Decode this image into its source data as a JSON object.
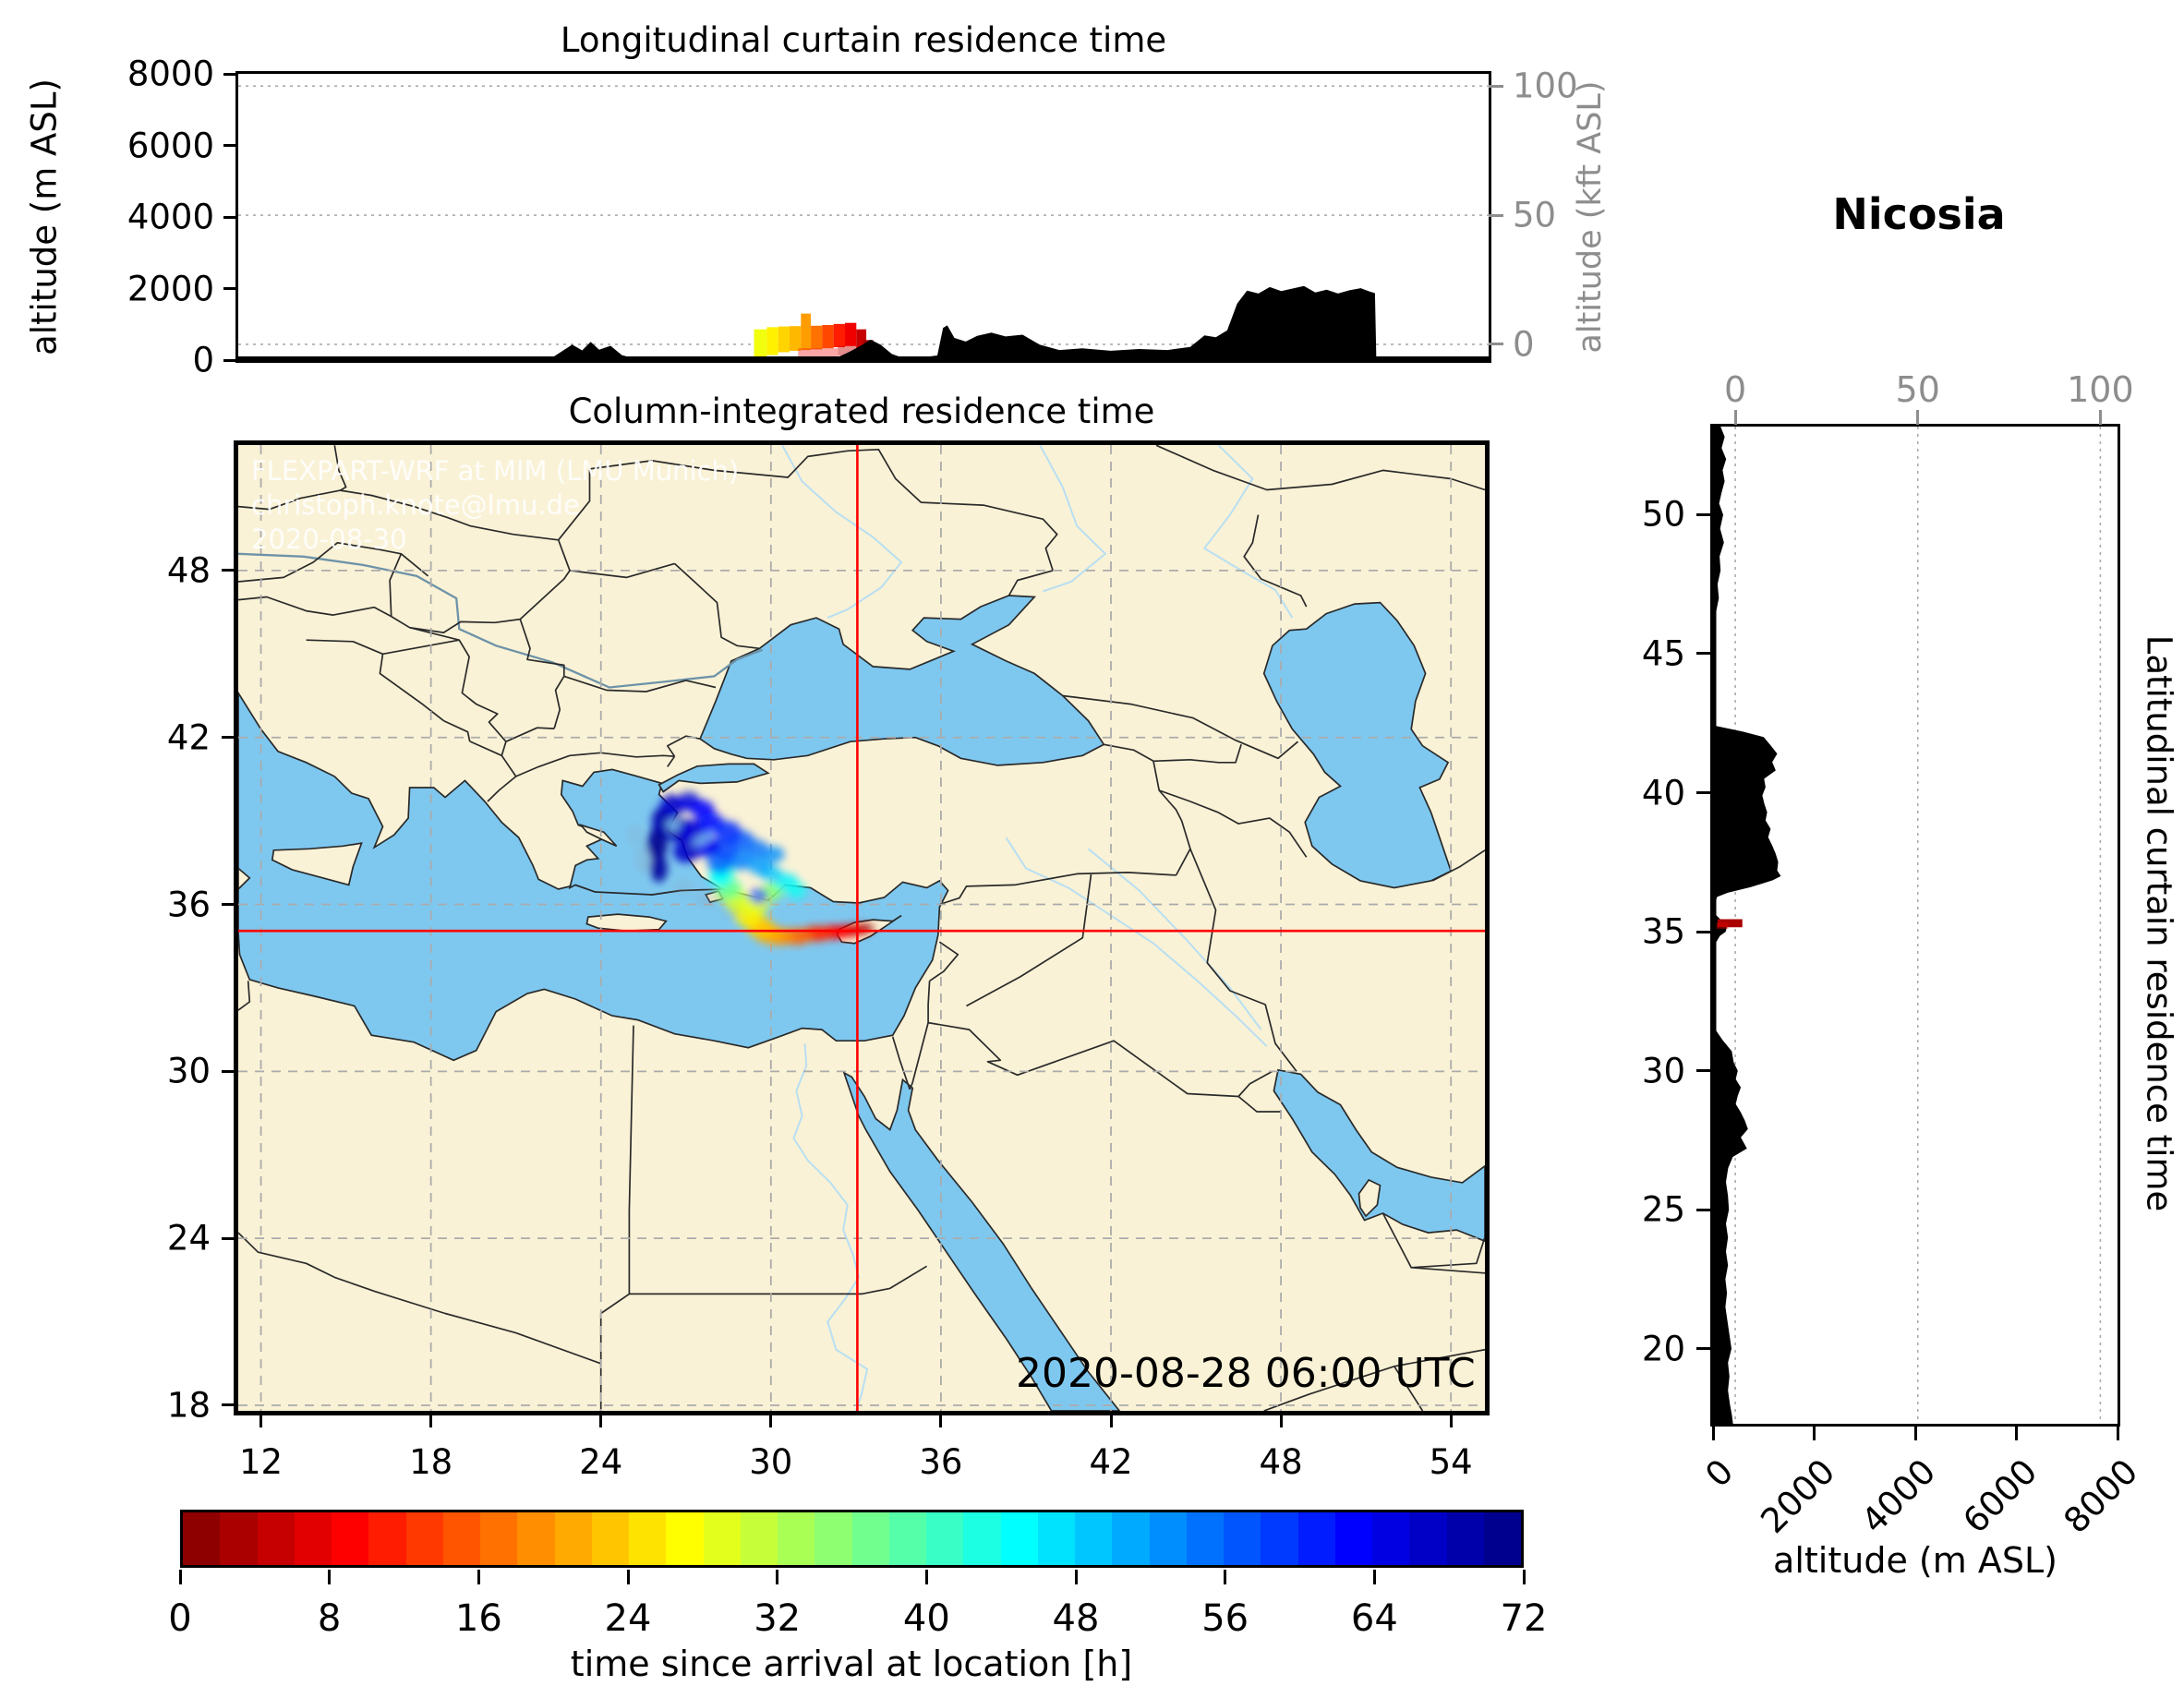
{
  "figure": {
    "title_station": "Nicosia",
    "watermark_lines": [
      "FLEXPART-WRF at MIM (LMU Munich)",
      "christoph.knote@lmu.de",
      "2020-08-30"
    ],
    "colors": {
      "land": "#FAF2D6",
      "sea": "#7EC8F0",
      "coast": "#2a2a2a",
      "border": "#2a2a2a",
      "river": "#b8dff2",
      "big_river": "#6d93a8",
      "grid": "#ababab",
      "crosshair": "#ff0000",
      "terrain": "#000000",
      "axis_gray": "#8d8d8d"
    }
  },
  "chart_data": [
    {
      "id": "longitudinal_curtain",
      "type": "area",
      "title": "Longitudinal curtain residence time",
      "ylabel": "altitude (m ASL)",
      "ylabel_right": "altitude (kft ASL)",
      "yticks": [
        8000,
        6000,
        4000,
        2000,
        0
      ],
      "yticks_right": [
        100,
        50,
        0
      ],
      "xlim": [
        11.2,
        55.2
      ],
      "ylim": [
        0,
        8000
      ],
      "right_gridlines_m": [
        7660,
        4050,
        440
      ],
      "terrain_lon_alt": [
        [
          11.2,
          40
        ],
        [
          13,
          28
        ],
        [
          15,
          25
        ],
        [
          17,
          30
        ],
        [
          19,
          28
        ],
        [
          21,
          32
        ],
        [
          22.2,
          45
        ],
        [
          22.6,
          250
        ],
        [
          22.95,
          430
        ],
        [
          23.3,
          270
        ],
        [
          23.6,
          510
        ],
        [
          23.9,
          290
        ],
        [
          24.3,
          400
        ],
        [
          24.7,
          140
        ],
        [
          25.1,
          55
        ],
        [
          26,
          35
        ],
        [
          27.5,
          30
        ],
        [
          29,
          40
        ],
        [
          30.5,
          45
        ],
        [
          31.8,
          60
        ],
        [
          32.3,
          80
        ],
        [
          32.7,
          230
        ],
        [
          33.1,
          400
        ],
        [
          33.45,
          570
        ],
        [
          33.8,
          430
        ],
        [
          34.2,
          170
        ],
        [
          34.6,
          60
        ],
        [
          35.2,
          70
        ],
        [
          35.8,
          130
        ],
        [
          36.0,
          900
        ],
        [
          36.15,
          970
        ],
        [
          36.4,
          620
        ],
        [
          36.8,
          520
        ],
        [
          37.2,
          680
        ],
        [
          37.7,
          770
        ],
        [
          38.2,
          660
        ],
        [
          38.8,
          710
        ],
        [
          39.4,
          430
        ],
        [
          40.1,
          280
        ],
        [
          40.9,
          330
        ],
        [
          41.9,
          260
        ],
        [
          42.9,
          310
        ],
        [
          43.9,
          280
        ],
        [
          44.7,
          370
        ],
        [
          45.2,
          690
        ],
        [
          45.6,
          640
        ],
        [
          46.0,
          830
        ],
        [
          46.35,
          1580
        ],
        [
          46.7,
          1940
        ],
        [
          47.1,
          1860
        ],
        [
          47.5,
          2040
        ],
        [
          47.9,
          1930
        ],
        [
          48.3,
          2000
        ],
        [
          48.7,
          2070
        ],
        [
          49.1,
          1890
        ],
        [
          49.5,
          1970
        ],
        [
          49.9,
          1860
        ],
        [
          50.3,
          1950
        ],
        [
          50.7,
          2010
        ],
        [
          51.0,
          1920
        ],
        [
          51.2,
          1870
        ],
        [
          51.25,
          0
        ]
      ],
      "plume_columns": [
        [
          29.35,
          29.8,
          40,
          860,
          28,
          1
        ],
        [
          29.8,
          30.2,
          140,
          920,
          26,
          1
        ],
        [
          30.2,
          30.6,
          220,
          940,
          24,
          1
        ],
        [
          30.6,
          31.0,
          260,
          950,
          22,
          1
        ],
        [
          31.0,
          31.35,
          280,
          1300,
          20,
          1
        ],
        [
          31.35,
          31.75,
          300,
          960,
          17,
          1
        ],
        [
          31.75,
          32.15,
          330,
          980,
          14,
          1
        ],
        [
          32.15,
          32.55,
          360,
          1010,
          11,
          1
        ],
        [
          32.55,
          32.95,
          390,
          1040,
          8,
          1
        ],
        [
          32.95,
          33.3,
          300,
          860,
          5,
          1
        ],
        [
          33.2,
          33.55,
          180,
          560,
          2,
          1
        ],
        [
          30.9,
          32.3,
          60,
          330,
          8,
          0.35
        ],
        [
          32.3,
          33.05,
          120,
          390,
          5,
          0.45
        ]
      ]
    },
    {
      "id": "column_integrated_map",
      "type": "map",
      "title": "Column-integrated residence time",
      "xticks": [
        12,
        18,
        24,
        30,
        36,
        42,
        48,
        54
      ],
      "yticks": [
        48,
        42,
        36,
        30,
        24,
        18
      ],
      "xlim": [
        11.2,
        55.2
      ],
      "ylim": [
        17.8,
        52.51
      ],
      "crosshair_lonlat": [
        33.05,
        35.05
      ],
      "timestamp": "2020-08-28 06:00 UTC",
      "plume_blobs": [
        [
          33.3,
          35.15,
          0.35,
          0.14,
          1,
          1
        ],
        [
          33.05,
          35.1,
          0.45,
          0.18,
          3,
          1
        ],
        [
          32.7,
          35.05,
          0.5,
          0.22,
          6,
          0.97
        ],
        [
          32.2,
          35.0,
          0.55,
          0.25,
          9,
          0.95
        ],
        [
          31.6,
          34.95,
          0.55,
          0.28,
          12,
          0.95
        ],
        [
          30.9,
          34.85,
          0.55,
          0.3,
          16,
          0.93
        ],
        [
          30.3,
          34.85,
          0.5,
          0.32,
          19,
          0.92
        ],
        [
          29.9,
          34.95,
          0.5,
          0.35,
          21,
          0.92
        ],
        [
          29.6,
          35.2,
          0.5,
          0.38,
          23,
          0.9
        ],
        [
          29.2,
          35.6,
          0.5,
          0.4,
          26,
          0.9
        ],
        [
          28.9,
          36.05,
          0.5,
          0.4,
          29,
          0.9
        ],
        [
          29.5,
          36.0,
          0.45,
          0.35,
          29,
          0.85
        ],
        [
          28.55,
          36.4,
          0.5,
          0.36,
          32,
          0.88
        ],
        [
          29.9,
          36.4,
          0.4,
          0.32,
          33,
          0.85
        ],
        [
          30.2,
          36.55,
          0.38,
          0.3,
          36,
          0.85
        ],
        [
          28.5,
          36.6,
          0.45,
          0.38,
          38,
          0.85
        ],
        [
          28.3,
          37.15,
          0.42,
          0.35,
          42,
          0.85
        ],
        [
          30.55,
          36.8,
          0.42,
          0.32,
          46,
          0.82
        ],
        [
          30.9,
          36.5,
          0.35,
          0.3,
          44,
          0.8
        ],
        [
          30.0,
          37.1,
          0.4,
          0.3,
          49,
          0.8
        ],
        [
          28.2,
          36.95,
          0.4,
          0.33,
          45,
          0.82
        ],
        [
          28.9,
          37.6,
          0.45,
          0.36,
          54,
          0.85
        ],
        [
          28.2,
          37.5,
          0.45,
          0.38,
          56,
          0.85
        ],
        [
          29.6,
          37.4,
          0.42,
          0.33,
          52,
          0.82
        ],
        [
          30.1,
          37.8,
          0.38,
          0.3,
          53,
          0.8
        ],
        [
          28.4,
          38.0,
          0.45,
          0.38,
          58,
          0.85
        ],
        [
          29.0,
          38.3,
          0.42,
          0.35,
          57,
          0.82
        ],
        [
          29.5,
          38.0,
          0.4,
          0.33,
          55,
          0.8
        ],
        [
          27.7,
          38.1,
          0.5,
          0.4,
          64,
          0.9
        ],
        [
          27.0,
          37.9,
          0.45,
          0.4,
          67,
          0.9
        ],
        [
          26.05,
          37.3,
          0.3,
          0.5,
          70,
          0.9
        ],
        [
          26.0,
          38.2,
          0.35,
          0.6,
          71,
          0.92
        ],
        [
          26.15,
          39.0,
          0.35,
          0.5,
          69,
          0.92
        ],
        [
          26.5,
          39.55,
          0.4,
          0.4,
          67,
          0.9
        ],
        [
          27.1,
          39.7,
          0.4,
          0.35,
          65,
          0.9
        ],
        [
          27.6,
          39.4,
          0.4,
          0.35,
          63,
          0.88
        ],
        [
          26.7,
          38.7,
          0.45,
          0.45,
          68,
          0.92
        ],
        [
          27.3,
          38.6,
          0.5,
          0.45,
          66,
          0.9
        ],
        [
          27.9,
          38.9,
          0.45,
          0.4,
          62,
          0.88
        ],
        [
          28.5,
          38.6,
          0.45,
          0.4,
          60,
          0.85
        ],
        [
          29.55,
          36.3,
          0.33,
          0.26,
          64,
          0.85
        ]
      ],
      "plume_gaps": [
        [
          29.5,
          36.28,
          0.28,
          0.09,
          -20
        ],
        [
          27.6,
          38.35,
          0.42,
          0.12,
          -30
        ],
        [
          26.55,
          38.85,
          0.24,
          0.18,
          0
        ]
      ],
      "plume_fringe": [
        [
          25.5,
          37.6,
          0.3,
          0.5,
          0.22
        ],
        [
          25.2,
          38.5,
          0.28,
          0.4,
          0.18
        ],
        [
          27.8,
          36.2,
          0.5,
          0.3,
          0.22
        ],
        [
          26.9,
          36.6,
          0.4,
          0.3,
          0.18
        ],
        [
          27.1,
          40.0,
          0.35,
          0.2,
          0.2
        ],
        [
          28.6,
          35.7,
          0.4,
          0.25,
          0.18
        ]
      ]
    },
    {
      "id": "latitudinal_curtain",
      "type": "area",
      "ylabel_right": "Latitudinal curtain residence time",
      "xlabel": "altitude (m ASL)",
      "xticks": [
        0,
        2000,
        4000,
        6000,
        8000
      ],
      "xticks_top": [
        0,
        50,
        100
      ],
      "yticks": [
        50,
        45,
        40,
        35,
        30,
        25,
        20
      ],
      "xlim": [
        0,
        8000
      ],
      "ylim": [
        17.3,
        53.17
      ],
      "top_gridlines_m": [
        440,
        4050,
        7660
      ],
      "terrain_lat_alt": [
        [
          53.17,
          150
        ],
        [
          52.8,
          230
        ],
        [
          52.4,
          170
        ],
        [
          52.0,
          260
        ],
        [
          51.6,
          190
        ],
        [
          51.2,
          230
        ],
        [
          50.8,
          170
        ],
        [
          50.4,
          120
        ],
        [
          50.0,
          200
        ],
        [
          49.5,
          140
        ],
        [
          49.0,
          215
        ],
        [
          48.5,
          130
        ],
        [
          48.0,
          150
        ],
        [
          47.5,
          90
        ],
        [
          47.0,
          115
        ],
        [
          46.5,
          60
        ],
        [
          46.0,
          40
        ],
        [
          45.0,
          28
        ],
        [
          44.0,
          24
        ],
        [
          43.0,
          30
        ],
        [
          42.4,
          60
        ],
        [
          42.2,
          580
        ],
        [
          42.0,
          1000
        ],
        [
          41.7,
          1140
        ],
        [
          41.4,
          1270
        ],
        [
          41.1,
          1170
        ],
        [
          40.8,
          1240
        ],
        [
          40.5,
          1010
        ],
        [
          40.2,
          1040
        ],
        [
          39.9,
          975
        ],
        [
          39.6,
          1015
        ],
        [
          39.3,
          1070
        ],
        [
          39.0,
          1040
        ],
        [
          38.7,
          1140
        ],
        [
          38.4,
          1090
        ],
        [
          38.1,
          1170
        ],
        [
          37.8,
          1240
        ],
        [
          37.5,
          1290
        ],
        [
          37.2,
          1270
        ],
        [
          37.0,
          1340
        ],
        [
          36.85,
          1180
        ],
        [
          36.6,
          740
        ],
        [
          36.4,
          290
        ],
        [
          36.25,
          80
        ],
        [
          36.0,
          40
        ],
        [
          35.8,
          30
        ],
        [
          35.6,
          60
        ],
        [
          35.45,
          140
        ],
        [
          35.3,
          210
        ],
        [
          35.15,
          270
        ],
        [
          35.0,
          250
        ],
        [
          34.85,
          135
        ],
        [
          34.6,
          55
        ],
        [
          34.2,
          30
        ],
        [
          33.5,
          25
        ],
        [
          32.5,
          30
        ],
        [
          31.5,
          40
        ],
        [
          31.1,
          190
        ],
        [
          30.7,
          370
        ],
        [
          30.3,
          410
        ],
        [
          30.0,
          490
        ],
        [
          29.7,
          450
        ],
        [
          29.4,
          550
        ],
        [
          29.1,
          490
        ],
        [
          28.8,
          450
        ],
        [
          28.5,
          550
        ],
        [
          28.2,
          630
        ],
        [
          27.9,
          690
        ],
        [
          27.6,
          550
        ],
        [
          27.2,
          670
        ],
        [
          26.9,
          390
        ],
        [
          26.5,
          300
        ],
        [
          26.0,
          255
        ],
        [
          25.5,
          295
        ],
        [
          25.0,
          315
        ],
        [
          24.5,
          255
        ],
        [
          24.0,
          295
        ],
        [
          23.5,
          255
        ],
        [
          23.0,
          295
        ],
        [
          22.5,
          245
        ],
        [
          22.0,
          275
        ],
        [
          21.5,
          245
        ],
        [
          21.0,
          285
        ],
        [
          20.5,
          325
        ],
        [
          20.0,
          365
        ],
        [
          19.5,
          295
        ],
        [
          19.0,
          325
        ],
        [
          18.5,
          295
        ],
        [
          18.0,
          335
        ],
        [
          17.6,
          375
        ],
        [
          17.3,
          395
        ]
      ],
      "plume_cells": [
        [
          35.16,
          35.45,
          90,
          580,
          3,
          1
        ],
        [
          35.1,
          35.32,
          40,
          300,
          7,
          0.4
        ]
      ]
    },
    {
      "id": "colorbar",
      "type": "colorbar",
      "label": "time since arrival at location [h]",
      "ticks": [
        0,
        8,
        16,
        24,
        32,
        40,
        48,
        56,
        64,
        72
      ],
      "vmin": 0,
      "vmax": 72,
      "step_h": 2,
      "colormap": "jet_r"
    }
  ]
}
